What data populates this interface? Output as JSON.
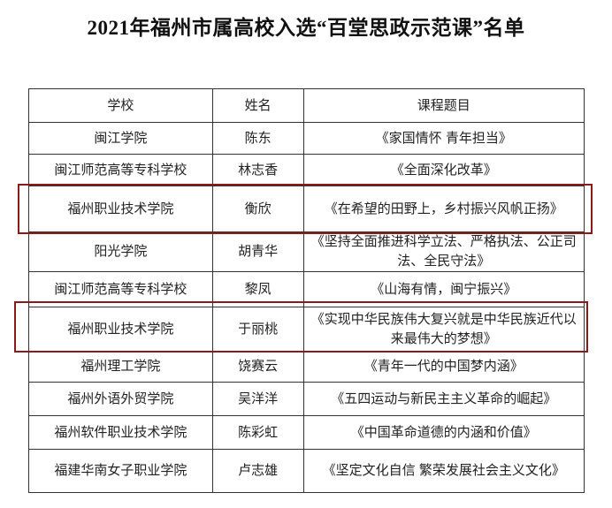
{
  "title": "2021年福州市属高校入选“百堂思政示范课”名单",
  "table": {
    "headers": [
      "学校",
      "姓名",
      "课程题目"
    ],
    "rows": [
      {
        "school": "闽江学院",
        "name": "陈东",
        "course": "《家国情怀  青年担当》",
        "highlighted": false
      },
      {
        "school": "闽江师范高等专科学校",
        "name": "林志香",
        "course": "《全面深化改革》",
        "highlighted": false
      },
      {
        "school": "福州职业技术学院",
        "name": "衡欣",
        "course": "《在希望的田野上，乡村振兴风帆正扬》",
        "highlighted": true
      },
      {
        "school": "阳光学院",
        "name": "胡青华",
        "course": "《坚持全面推进科学立法、严格执法、公正司法、全民守法》",
        "highlighted": false
      },
      {
        "school": "闽江师范高等专科学校",
        "name": "黎凤",
        "course": "《山海有情，闽宁振兴》",
        "highlighted": false
      },
      {
        "school": "福州职业技术学院",
        "name": "于丽桃",
        "course": "《实现中华民族伟大复兴就是中华民族近代以来最伟大的梦想》",
        "highlighted": true
      },
      {
        "school": "福州理工学院",
        "name": "饶赛云",
        "course": "《青年一代的中国梦内涵》",
        "highlighted": false
      },
      {
        "school": "福州外语外贸学院",
        "name": "吴洋洋",
        "course": "《五四运动与新民主主义革命的崛起》",
        "highlighted": false
      },
      {
        "school": "福州软件职业技术学院",
        "name": "陈彩虹",
        "course": "《中国革命道德的内涵和价值》",
        "highlighted": false
      },
      {
        "school": "福建华南女子职业学院",
        "name": "卢志雄",
        "course": "《坚定文化自信  繁荣发展社会主义文化》",
        "highlighted": false
      }
    ]
  },
  "highlight_color": "#8b1a1a"
}
